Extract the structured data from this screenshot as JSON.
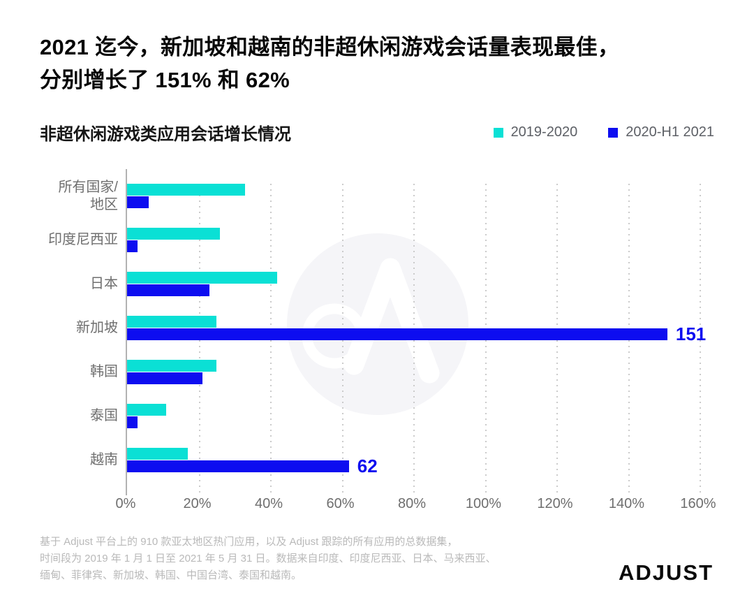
{
  "header": {
    "title_line1": "2021 迄今，新加坡和越南的非超休闲游戏会话量表现最佳，",
    "title_line2": "分别增长了 151% 和 62%"
  },
  "chart": {
    "subtitle": "非超休闲游戏类应用会话增长情况"
  },
  "chart_data": {
    "type": "bar",
    "orientation": "horizontal",
    "title": "非超休闲游戏类应用会话增长情况",
    "xlabel": "",
    "ylabel": "",
    "categories": [
      "所有国家/\n地区",
      "印度尼西亚",
      "日本",
      "新加坡",
      "韩国",
      "泰国",
      "越南"
    ],
    "series": [
      {
        "name": "2019-2020",
        "color": "#0ae0d5",
        "values": [
          33,
          26,
          42,
          25,
          25,
          11,
          17
        ],
        "value_labels": [
          "",
          "",
          "",
          "",
          "",
          "",
          ""
        ]
      },
      {
        "name": "2020-H1 2021",
        "color": "#0d0df0",
        "values": [
          6,
          3,
          23,
          151,
          21,
          3,
          62
        ],
        "value_labels": [
          "",
          "",
          "",
          "151",
          "",
          "",
          "62"
        ]
      }
    ],
    "xlim": [
      0,
      160
    ],
    "unit": "%",
    "ticks": [
      0,
      20,
      40,
      60,
      80,
      100,
      120,
      140,
      160
    ],
    "tick_labels": [
      "0%",
      "20%",
      "40%",
      "60%",
      "80%",
      "100%",
      "120%",
      "140%",
      "160%"
    ],
    "grid": "vertical-dotted",
    "legend_position": "top-right"
  },
  "footnote": {
    "line1": "基于 Adjust 平台上的 910 款亚太地区热门应用，以及 Adjust 跟踪的所有应用的总数据集，",
    "line2": "时间段为 2019 年 1 月 1 日至 2021 年 5 月 31 日。数据来自印度、印度尼西亚、日本、马来西亚、",
    "line3": "缅甸、菲律宾、新加坡、韩国、中国台湾、泰国和越南。"
  },
  "footer": {
    "logo_text": "ADJUST"
  },
  "colors": {
    "teal": "#0ae0d5",
    "blue": "#0d0df0",
    "watermark_circle": "#f5f5f8",
    "axis_line": "#b2b2b2",
    "tick_text": "#6e6e6e",
    "footnote_text": "#b9b9b9"
  }
}
